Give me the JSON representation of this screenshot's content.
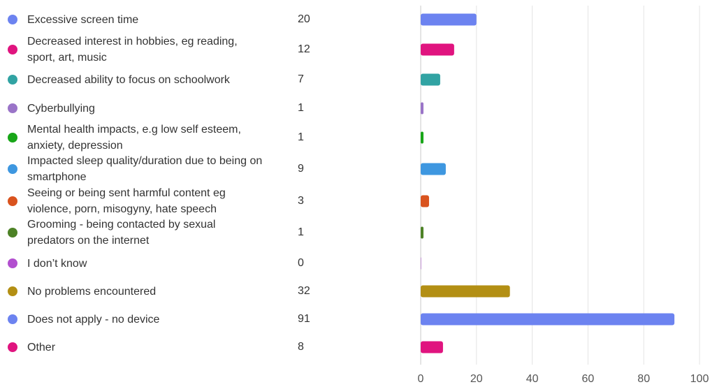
{
  "chart_data": {
    "type": "bar",
    "orientation": "horizontal",
    "categories": [
      "Excessive screen time",
      "Decreased interest in hobbies, eg reading, sport, art, music",
      "Decreased ability to focus on schoolwork",
      "Cyberbullying",
      "Mental health impacts, e.g low self esteem, anxiety, depression",
      "Impacted sleep quality/duration due to being on smartphone",
      "Seeing or being sent harmful content eg violence, porn, misogyny, hate speech",
      "Grooming - being contacted by sexual predators on the internet",
      "I don’t know",
      "No problems encountered",
      "Does not apply - no device",
      "Other"
    ],
    "values": [
      20,
      12,
      7,
      1,
      1,
      9,
      3,
      1,
      0,
      32,
      91,
      8
    ],
    "colors": [
      "#6c83f0",
      "#e0147f",
      "#31a3a3",
      "#9a74c8",
      "#18a618",
      "#3e97e0",
      "#d9531e",
      "#4d8226",
      "#b24fcf",
      "#b38f14",
      "#6c83f0",
      "#e0147f"
    ],
    "xlim": [
      0,
      100
    ],
    "xticks": [
      "0",
      "20",
      "40",
      "60",
      "80",
      "100"
    ],
    "grid": true,
    "legend": "left"
  }
}
